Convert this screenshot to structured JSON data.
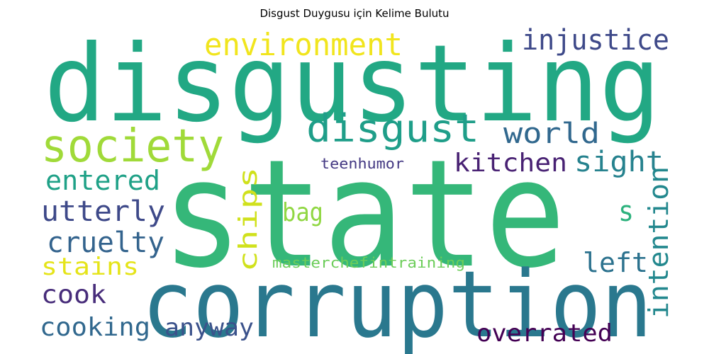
{
  "title": "Disgust Duygusu için Kelime Bulutu",
  "words": [
    {
      "text": "disgusting",
      "color": "#22a884"
    },
    {
      "text": "state",
      "color": "#35b779"
    },
    {
      "text": "corruption",
      "color": "#2a788e"
    },
    {
      "text": "society",
      "color": "#a0da39"
    },
    {
      "text": "disgust",
      "color": "#1f9e89"
    },
    {
      "text": "environment",
      "color": "#f1e51d"
    },
    {
      "text": "injustice",
      "color": "#3e4989"
    },
    {
      "text": "world",
      "color": "#31688e"
    },
    {
      "text": "kitchen",
      "color": "#482173"
    },
    {
      "text": "sight",
      "color": "#26828e"
    },
    {
      "text": "teenhumor",
      "color": "#443983"
    },
    {
      "text": "entered",
      "color": "#1fa187"
    },
    {
      "text": "utterly",
      "color": "#3e4989"
    },
    {
      "text": "bag",
      "color": "#90d743"
    },
    {
      "text": "s",
      "color": "#2db27d"
    },
    {
      "text": "cruelty",
      "color": "#33638d"
    },
    {
      "text": "chips",
      "color": "#d0e11c"
    },
    {
      "text": "intention",
      "color": "#23888e"
    },
    {
      "text": "stains",
      "color": "#e5e419"
    },
    {
      "text": "left",
      "color": "#2c728e"
    },
    {
      "text": "masterchefintraining",
      "color": "#6ccd5a"
    },
    {
      "text": "cook",
      "color": "#472c7a"
    },
    {
      "text": "cooking",
      "color": "#31688e"
    },
    {
      "text": "anyway",
      "color": "#3b528b"
    },
    {
      "text": "overrated",
      "color": "#440154"
    }
  ]
}
